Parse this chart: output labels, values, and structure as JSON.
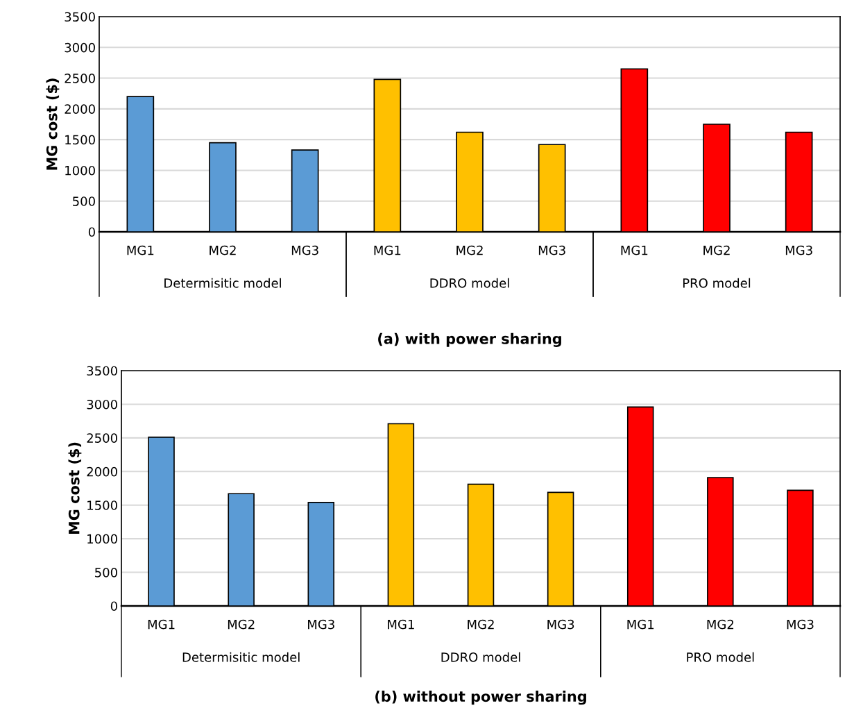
{
  "chart_data": [
    {
      "type": "bar",
      "title": "(a) with power sharing",
      "ylabel": "MG cost ($)",
      "categories": [
        "MG1",
        "MG2",
        "MG3",
        "MG1",
        "MG2",
        "MG3",
        "MG1",
        "MG2",
        "MG3"
      ],
      "ylim": [
        0,
        3500
      ],
      "yticks": [
        0,
        500,
        1000,
        1500,
        2000,
        2500,
        3000,
        3500
      ],
      "grid": "y",
      "legend": false,
      "annotations": [
        "Determisitic model",
        "DDRO model",
        "PRO model"
      ],
      "series": [
        {
          "color": "#5b9bd5",
          "values": [
            2200,
            1450,
            1330,
            null,
            null,
            null,
            null,
            null,
            null
          ]
        },
        {
          "color": "#ffc000",
          "values": [
            null,
            null,
            null,
            2480,
            1620,
            1420,
            null,
            null,
            null
          ]
        },
        {
          "color": "#ff0000",
          "values": [
            null,
            null,
            null,
            null,
            null,
            null,
            2650,
            1750,
            1620
          ]
        }
      ]
    },
    {
      "type": "bar",
      "title": "(b) without power sharing",
      "ylabel": "MG cost ($)",
      "categories": [
        "MG1",
        "MG2",
        "MG3",
        "MG1",
        "MG2",
        "MG3",
        "MG1",
        "MG2",
        "MG3"
      ],
      "ylim": [
        0,
        3500
      ],
      "yticks": [
        0,
        500,
        1000,
        1500,
        2000,
        2500,
        3000,
        3500
      ],
      "grid": "y",
      "legend": false,
      "annotations": [
        "Determisitic model",
        "DDRO model",
        "PRO model"
      ],
      "series": [
        {
          "color": "#5b9bd5",
          "values": [
            2510,
            1670,
            1540,
            null,
            null,
            null,
            null,
            null,
            null
          ]
        },
        {
          "color": "#ffc000",
          "values": [
            null,
            null,
            null,
            2710,
            1810,
            1690,
            null,
            null,
            null
          ]
        },
        {
          "color": "#ff0000",
          "values": [
            null,
            null,
            null,
            null,
            null,
            null,
            2960,
            1910,
            1720
          ]
        }
      ]
    }
  ]
}
